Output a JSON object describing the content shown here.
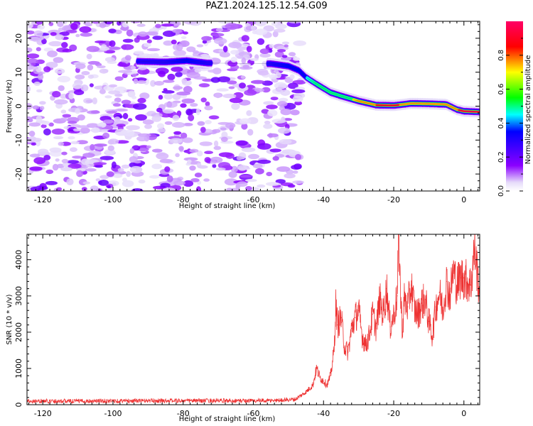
{
  "title": "PAZ1.2024.125.12.54.G09",
  "chart_data": [
    {
      "type": "heatmap",
      "xlabel": "Height of straight line (km)",
      "ylabel": "Frequency (Hz)",
      "xlim": [
        -124.5,
        4.5
      ],
      "ylim": [
        -25,
        25
      ],
      "xticks": [
        -120,
        -100,
        -80,
        -60,
        -40,
        -20,
        0
      ],
      "yticks": [
        -20,
        -10,
        0,
        10,
        20
      ],
      "colorbar": {
        "label": "Normalized spectral amplitude",
        "range": [
          0.0,
          1.0
        ],
        "ticks": [
          0.0,
          0.2,
          0.4,
          0.6,
          0.8
        ],
        "colormap": "gist_rainbow",
        "colors": [
          "#e8e0fa",
          "#8b00ff",
          "#0000ff",
          "#00ffff",
          "#00ff00",
          "#ffff00",
          "#ff0000",
          "#ff0066"
        ]
      },
      "ridge": {
        "x": [
          -93,
          -85,
          -79,
          -73,
          -55,
          -50,
          -47,
          -45,
          -42,
          -38,
          -35,
          -30,
          -25,
          -20,
          -15,
          -10,
          -5,
          -2,
          0,
          4.5
        ],
        "y": [
          13.2,
          13.0,
          13.4,
          12.7,
          12.5,
          11.8,
          10.5,
          8.5,
          6.5,
          4.0,
          3.0,
          1.5,
          0.3,
          0.2,
          0.8,
          0.7,
          0.5,
          -1.0,
          -1.5,
          -1.7
        ],
        "amplitude": [
          0.3,
          0.3,
          0.35,
          0.3,
          0.3,
          0.35,
          0.4,
          0.45,
          0.5,
          0.55,
          0.6,
          0.75,
          0.9,
          0.92,
          0.85,
          0.85,
          0.8,
          0.88,
          0.95,
          0.95
        ]
      }
    },
    {
      "type": "line",
      "xlabel": "Height of straight line (km)",
      "ylabel": "SNR (10 * v/v)",
      "xlim": [
        -124.5,
        4.5
      ],
      "ylim": [
        0,
        4700
      ],
      "xticks": [
        -120,
        -100,
        -80,
        -60,
        -40,
        -20,
        0
      ],
      "yticks": [
        0,
        1000,
        2000,
        3000,
        4000
      ],
      "color": "#ee3333",
      "series": [
        {
          "x": [
            -124.5,
            -110,
            -90,
            -70,
            -55,
            -48,
            -45,
            -43,
            -42,
            -41,
            -40,
            -39,
            -38,
            -37,
            -36.5,
            -36,
            -35,
            -34,
            -33,
            -32,
            -31,
            -30,
            -29,
            -28,
            -27,
            -26,
            -25,
            -24,
            -23,
            -22,
            -21,
            -20,
            -19,
            -18.5,
            -18,
            -17.5,
            -17,
            -16,
            -15,
            -14,
            -13,
            -12,
            -11,
            -10,
            -9,
            -8,
            -7,
            -6,
            -5,
            -4,
            -3,
            -2,
            -1,
            0,
            1,
            2,
            3,
            4,
            4.5
          ],
          "y": [
            100,
            100,
            110,
            110,
            110,
            150,
            350,
            550,
            1000,
            750,
            650,
            550,
            800,
            1500,
            2750,
            2200,
            2400,
            1600,
            1450,
            2100,
            2400,
            2600,
            1900,
            1650,
            1900,
            2500,
            2100,
            2900,
            2500,
            3200,
            2150,
            2450,
            3000,
            4700,
            2900,
            2000,
            2900,
            2700,
            3300,
            2600,
            2500,
            2800,
            2900,
            2300,
            1900,
            2700,
            3100,
            2600,
            3400,
            3000,
            3700,
            3300,
            3500,
            3500,
            3400,
            3300,
            4300,
            3500,
            3100
          ]
        }
      ]
    }
  ]
}
